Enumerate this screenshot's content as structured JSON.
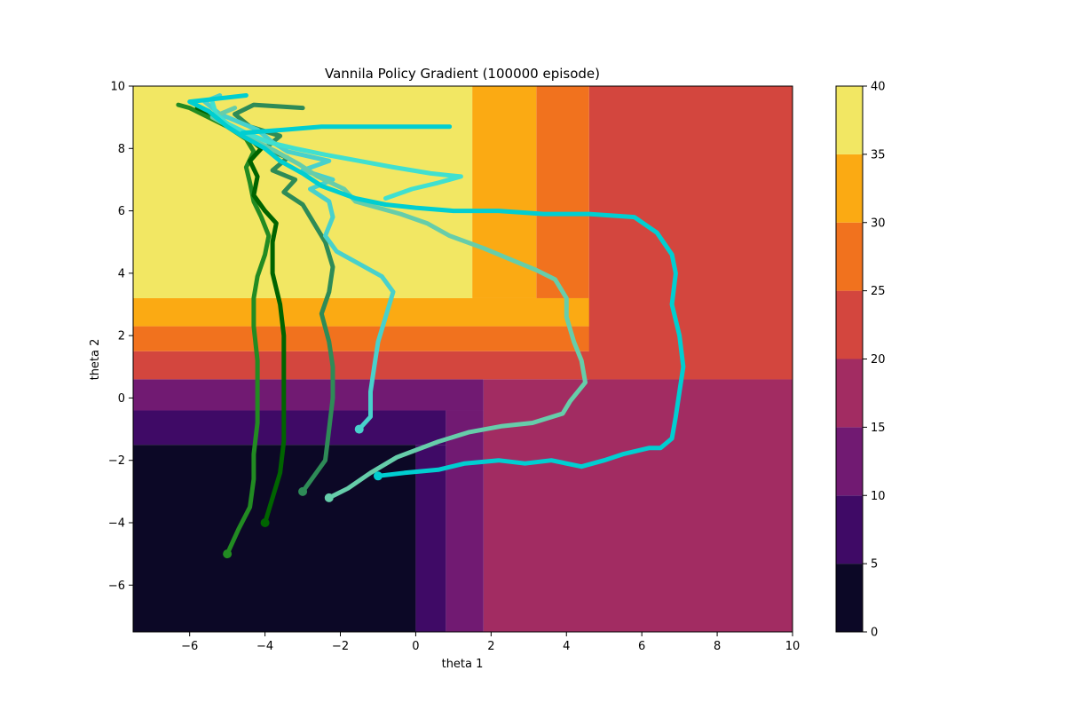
{
  "chart_data": {
    "type": "heatmap",
    "title": "Vannila Policy Gradient (100000 episode)",
    "xlabel": "theta 1",
    "ylabel": "theta 2",
    "xlim": [
      -7.5,
      10
    ],
    "ylim": [
      -7.5,
      10
    ],
    "x_ticks": [
      -6,
      -4,
      -2,
      0,
      2,
      4,
      6,
      8,
      10
    ],
    "y_ticks": [
      -6,
      -4,
      -2,
      0,
      2,
      4,
      6,
      8,
      10
    ],
    "colorbar": {
      "levels": [
        0,
        5,
        10,
        15,
        20,
        25,
        30,
        35,
        40
      ],
      "colors": [
        "#0c0826",
        "#3f0a66",
        "#711a72",
        "#a22c62",
        "#d3463e",
        "#f1721e",
        "#fbaa13",
        "#f2e763"
      ]
    },
    "regions": [
      {
        "x": [
          -7.5,
          0
        ],
        "y": [
          -7.5,
          -1.5
        ],
        "level": 0
      },
      {
        "x": [
          0,
          0.8
        ],
        "y": [
          -7.5,
          -1.5
        ],
        "level": 1
      },
      {
        "x": [
          -7.5,
          0.8
        ],
        "y": [
          -1.5,
          -0.4
        ],
        "level": 1
      },
      {
        "x": [
          0.8,
          1.8
        ],
        "y": [
          -7.5,
          -0.4
        ],
        "level": 2
      },
      {
        "x": [
          -7.5,
          1.8
        ],
        "y": [
          -0.4,
          0.6
        ],
        "level": 2
      },
      {
        "x": [
          1.8,
          10
        ],
        "y": [
          -7.5,
          0.6
        ],
        "level": 3
      },
      {
        "x": [
          -7.5,
          10
        ],
        "y": [
          0.6,
          1.5
        ],
        "level": 4
      },
      {
        "x": [
          -7.5,
          10
        ],
        "y": [
          1.5,
          2.3
        ],
        "level": 5
      },
      {
        "x": [
          -7.5,
          10
        ],
        "y": [
          2.3,
          3.2
        ],
        "level": 6
      },
      {
        "x": [
          4.6,
          10
        ],
        "y": [
          0.6,
          10
        ],
        "level": 4
      },
      {
        "x": [
          3.2,
          4.6
        ],
        "y": [
          3.2,
          10
        ],
        "level": 5
      },
      {
        "x": [
          1.5,
          3.2
        ],
        "y": [
          3.2,
          10
        ],
        "level": 6
      },
      {
        "x": [
          -7.5,
          1.5
        ],
        "y": [
          3.2,
          10
        ],
        "level": 7
      }
    ],
    "series": [
      {
        "color": "#228b22",
        "points": [
          [
            -5,
            -5
          ],
          [
            -4.7,
            -4.2
          ],
          [
            -4.4,
            -3.5
          ],
          [
            -4.3,
            -2.6
          ],
          [
            -4.3,
            -1.8
          ],
          [
            -4.2,
            -0.8
          ],
          [
            -4.2,
            0.2
          ],
          [
            -4.2,
            1.2
          ],
          [
            -4.3,
            2.3
          ],
          [
            -4.3,
            3.2
          ],
          [
            -4.2,
            3.9
          ],
          [
            -4.0,
            4.6
          ],
          [
            -3.9,
            5.2
          ],
          [
            -4.1,
            5.8
          ],
          [
            -4.3,
            6.3
          ],
          [
            -4.4,
            6.9
          ],
          [
            -4.5,
            7.4
          ],
          [
            -4.3,
            7.9
          ],
          [
            -4.5,
            8.3
          ],
          [
            -5.0,
            8.7
          ],
          [
            -5.5,
            9.0
          ],
          [
            -6.0,
            9.3
          ],
          [
            -6.3,
            9.4
          ]
        ]
      },
      {
        "color": "#006400",
        "points": [
          [
            -4,
            -4
          ],
          [
            -3.8,
            -3.2
          ],
          [
            -3.6,
            -2.4
          ],
          [
            -3.5,
            -1.4
          ],
          [
            -3.5,
            -0.4
          ],
          [
            -3.5,
            0.8
          ],
          [
            -3.5,
            2.0
          ],
          [
            -3.6,
            3.0
          ],
          [
            -3.8,
            4.0
          ],
          [
            -3.8,
            5.0
          ],
          [
            -3.7,
            5.6
          ],
          [
            -4.0,
            6.0
          ],
          [
            -4.3,
            6.5
          ],
          [
            -4.2,
            7.1
          ],
          [
            -4.4,
            7.6
          ],
          [
            -4.1,
            8.0
          ],
          [
            -4.5,
            8.4
          ],
          [
            -5.0,
            8.8
          ],
          [
            -5.4,
            9.1
          ],
          [
            -5.8,
            9.3
          ]
        ]
      },
      {
        "color": "#2e8b57",
        "points": [
          [
            -3,
            -3
          ],
          [
            -2.7,
            -2.5
          ],
          [
            -2.4,
            -2.0
          ],
          [
            -2.3,
            -1.0
          ],
          [
            -2.2,
            0.0
          ],
          [
            -2.2,
            1.0
          ],
          [
            -2.3,
            1.8
          ],
          [
            -2.5,
            2.7
          ],
          [
            -2.3,
            3.4
          ],
          [
            -2.2,
            4.2
          ],
          [
            -2.4,
            5.0
          ],
          [
            -2.7,
            5.6
          ],
          [
            -3.0,
            6.2
          ],
          [
            -3.5,
            6.6
          ],
          [
            -3.2,
            7.0
          ],
          [
            -3.8,
            7.3
          ],
          [
            -3.4,
            7.7
          ],
          [
            -4.0,
            8.0
          ],
          [
            -3.6,
            8.4
          ],
          [
            -4.4,
            8.7
          ],
          [
            -4.8,
            9.1
          ],
          [
            -4.3,
            9.4
          ],
          [
            -3.0,
            9.3
          ]
        ]
      },
      {
        "color": "#48d1cc",
        "points": [
          [
            -1.5,
            -1
          ],
          [
            -1.2,
            -0.6
          ],
          [
            -1.2,
            0.2
          ],
          [
            -1.1,
            1.0
          ],
          [
            -1.0,
            1.8
          ],
          [
            -0.8,
            2.6
          ],
          [
            -0.6,
            3.4
          ],
          [
            -0.9,
            3.9
          ],
          [
            -1.5,
            4.3
          ],
          [
            -2.1,
            4.7
          ],
          [
            -2.4,
            5.2
          ],
          [
            -2.2,
            5.8
          ],
          [
            -2.3,
            6.3
          ],
          [
            -2.8,
            6.7
          ],
          [
            -2.2,
            7.0
          ],
          [
            -3.0,
            7.3
          ],
          [
            -2.3,
            7.6
          ],
          [
            -3.4,
            7.9
          ],
          [
            -3.8,
            8.2
          ],
          [
            -4.2,
            8.6
          ],
          [
            -5.2,
            9.1
          ],
          [
            -5.6,
            9.5
          ],
          [
            -5.2,
            9.7
          ]
        ]
      },
      {
        "color": "#66cdaa",
        "points": [
          [
            -2.3,
            -3.2
          ],
          [
            -1.8,
            -2.9
          ],
          [
            -1.2,
            -2.4
          ],
          [
            -0.5,
            -1.9
          ],
          [
            0.6,
            -1.4
          ],
          [
            1.4,
            -1.1
          ],
          [
            2.3,
            -0.9
          ],
          [
            3.1,
            -0.8
          ],
          [
            3.9,
            -0.5
          ],
          [
            4.1,
            -0.1
          ],
          [
            4.5,
            0.5
          ],
          [
            4.4,
            1.2
          ],
          [
            4.2,
            1.8
          ],
          [
            4.0,
            2.6
          ],
          [
            4.0,
            3.2
          ],
          [
            3.7,
            3.8
          ],
          [
            3.2,
            4.1
          ],
          [
            2.6,
            4.4
          ],
          [
            1.8,
            4.8
          ],
          [
            0.9,
            5.2
          ],
          [
            0.3,
            5.6
          ],
          [
            -0.4,
            5.9
          ],
          [
            -1.0,
            6.1
          ],
          [
            -1.6,
            6.3
          ],
          [
            -1.9,
            6.7
          ],
          [
            -2.6,
            7.1
          ],
          [
            -3.1,
            7.5
          ],
          [
            -3.7,
            7.9
          ],
          [
            -4.2,
            8.2
          ],
          [
            -4.8,
            8.6
          ],
          [
            -5.4,
            9.0
          ],
          [
            -4.8,
            9.3
          ]
        ]
      },
      {
        "color": "#40e0d0",
        "points": [
          [
            -0.8,
            6.4
          ],
          [
            -0.1,
            6.7
          ],
          [
            0.6,
            6.9
          ],
          [
            1.2,
            7.1
          ],
          [
            0.4,
            7.2
          ],
          [
            -0.6,
            7.4
          ],
          [
            -1.5,
            7.6
          ],
          [
            -2.4,
            7.8
          ],
          [
            -3.2,
            8.0
          ],
          [
            -3.9,
            8.2
          ],
          [
            -4.5,
            8.5
          ],
          [
            -5.0,
            8.8
          ],
          [
            -5.3,
            9.1
          ],
          [
            -5.4,
            9.5
          ]
        ]
      },
      {
        "color": "#00ced1",
        "points": [
          [
            -1,
            -2.5
          ],
          [
            -0.3,
            -2.4
          ],
          [
            0.6,
            -2.3
          ],
          [
            1.3,
            -2.1
          ],
          [
            2.2,
            -2.0
          ],
          [
            2.9,
            -2.1
          ],
          [
            3.6,
            -2.0
          ],
          [
            4.4,
            -2.2
          ],
          [
            5.0,
            -2.0
          ],
          [
            5.5,
            -1.8
          ],
          [
            6.2,
            -1.6
          ],
          [
            6.5,
            -1.6
          ],
          [
            6.8,
            -1.3
          ],
          [
            6.9,
            -0.6
          ],
          [
            7.0,
            0.2
          ],
          [
            7.1,
            1.0
          ],
          [
            7.0,
            2.0
          ],
          [
            6.8,
            3.0
          ],
          [
            6.9,
            4.0
          ],
          [
            6.8,
            4.6
          ],
          [
            6.4,
            5.3
          ],
          [
            5.8,
            5.8
          ],
          [
            4.6,
            5.9
          ],
          [
            3.4,
            5.9
          ],
          [
            2.2,
            6.0
          ],
          [
            1.0,
            6.0
          ],
          [
            0.0,
            6.1
          ],
          [
            -0.8,
            6.2
          ],
          [
            -1.6,
            6.4
          ],
          [
            -2.5,
            6.8
          ],
          [
            -3.0,
            7.2
          ],
          [
            -3.6,
            7.6
          ],
          [
            -4.0,
            8.0
          ],
          [
            -4.6,
            8.4
          ],
          [
            -5.0,
            8.7
          ],
          [
            -5.5,
            9.2
          ],
          [
            -6.0,
            9.5
          ],
          [
            -4.5,
            9.7
          ]
        ]
      },
      {
        "color": "#00ced1",
        "points": [
          [
            -4.6,
            8.5
          ],
          [
            -3.5,
            8.6
          ],
          [
            -2.5,
            8.7
          ],
          [
            -1.0,
            8.7
          ],
          [
            0.0,
            8.7
          ],
          [
            0.9,
            8.7
          ]
        ]
      }
    ]
  }
}
